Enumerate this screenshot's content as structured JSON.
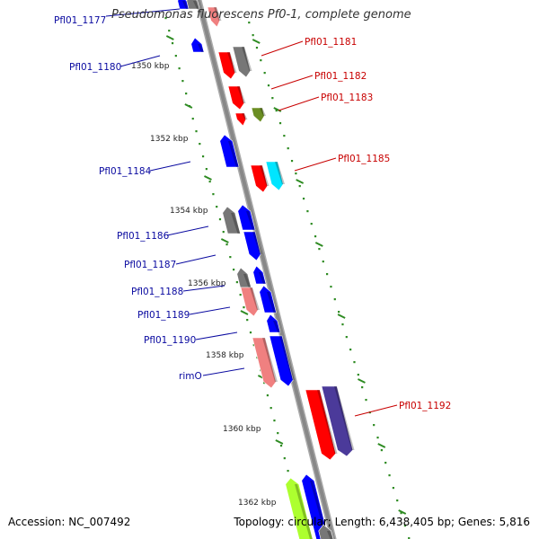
{
  "title": "Pseudomonas fluorescens Pf0-1, complete genome",
  "footer": {
    "accession": "Accession: NC_007492",
    "summary": "Topology: circular; Length: 6,438,405 bp; Genes: 5,816"
  },
  "colors": {
    "backbone": "#888888",
    "tick": "#2e8b22",
    "dot": "#2e8b22",
    "left_label": "#0a0aa0",
    "right_label": "#c80000",
    "red_cds": "#ff0000",
    "blue_cds": "#0000ff",
    "gray_cds": "#777777",
    "pink_cds": "#f08080",
    "olive_cds": "#6b8e23",
    "cyan_cds": "#00e5ff",
    "navy_cds": "#4b3a9a",
    "lime_cds": "#adff2f"
  },
  "scale_labels": [
    "1350 kbp",
    "1352 kbp",
    "1354 kbp",
    "1356 kbp",
    "1358 kbp",
    "1360 kbp",
    "1362 kbp"
  ],
  "gene_labels": {
    "left": [
      "Pfl01_1177",
      "Pfl01_1180",
      "Pfl01_1184",
      "Pfl01_1186",
      "Pfl01_1187",
      "Pfl01_1188",
      "Pfl01_1189",
      "Pfl01_1190",
      "rimO"
    ],
    "right": [
      "Pfl01_1181",
      "Pfl01_1182",
      "Pfl01_1183",
      "Pfl01_1185",
      "Pfl01_1192"
    ]
  }
}
